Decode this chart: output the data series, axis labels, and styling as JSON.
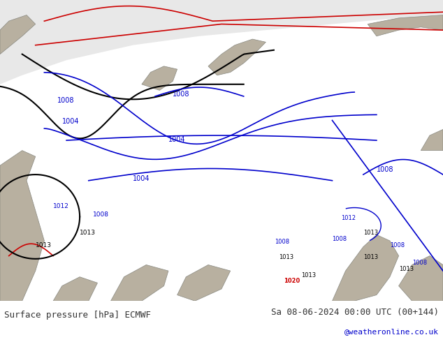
{
  "title_left": "Surface pressure [hPa] ECMWF",
  "title_right": "Sa 08-06-2024 00:00 UTC (00+144)",
  "credit": "@weatheronline.co.uk",
  "credit_color": "#0000cc",
  "bg_color": "#c8e6c8",
  "ocean_color": "#d8e8f8",
  "land_gray_color": "#b0a898",
  "arctic_color": "#e8e8e8",
  "bottom_bar_color": "#ffffff",
  "isobar_blue_color": "#0000cc",
  "isobar_black_color": "#000000",
  "isobar_red_color": "#cc0000",
  "text_color": "#333333",
  "bottom_text_color": "#333333",
  "font_size_bottom": 9,
  "font_size_labels": 7
}
